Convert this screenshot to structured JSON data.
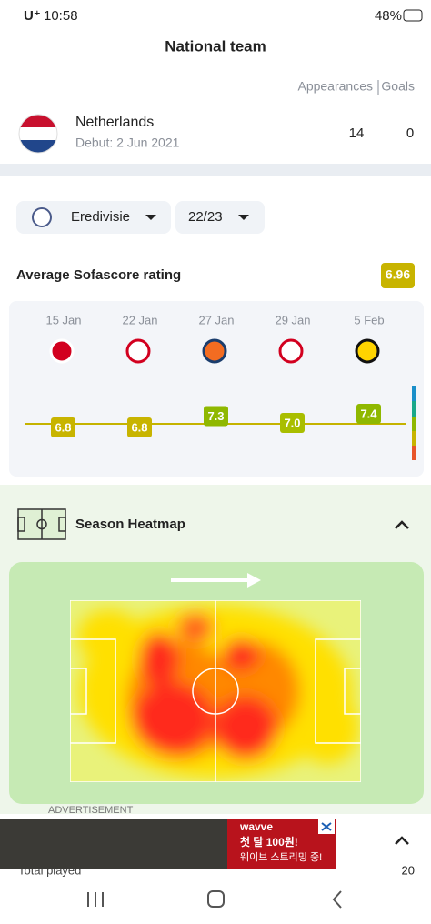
{
  "status_bar": {
    "carrier": "U⁺",
    "time": "10:58",
    "battery": "48%"
  },
  "header": {
    "title": "National team"
  },
  "team": {
    "col_appearances": "Appearances",
    "col_goals": "Goals",
    "name": "Netherlands",
    "debut": "Debut: 2 Jun 2021",
    "appearances": "14",
    "goals": "0"
  },
  "filters": {
    "league": "Eredivisie",
    "season": "22/23"
  },
  "rating": {
    "title": "Average Sofascore rating",
    "average": 6.96,
    "matches": [
      {
        "date": "15 Jan",
        "rating": 6.8
      },
      {
        "date": "22 Jan",
        "rating": 6.8
      },
      {
        "date": "27 Jan",
        "rating": 7.3
      },
      {
        "date": "29 Jan",
        "rating": 7.0,
        "rating_label": "7.0"
      },
      {
        "date": "5 Feb",
        "rating": 7.4
      }
    ]
  },
  "heatmap": {
    "title": "Season Heatmap"
  },
  "ad": {
    "label": "ADVERTISEMENT",
    "brand": "wavve",
    "line1": "첫 달 100원!",
    "line2": "웨이브 스트리밍 중!"
  },
  "stats": {
    "label": "Total played",
    "value": "20"
  }
}
